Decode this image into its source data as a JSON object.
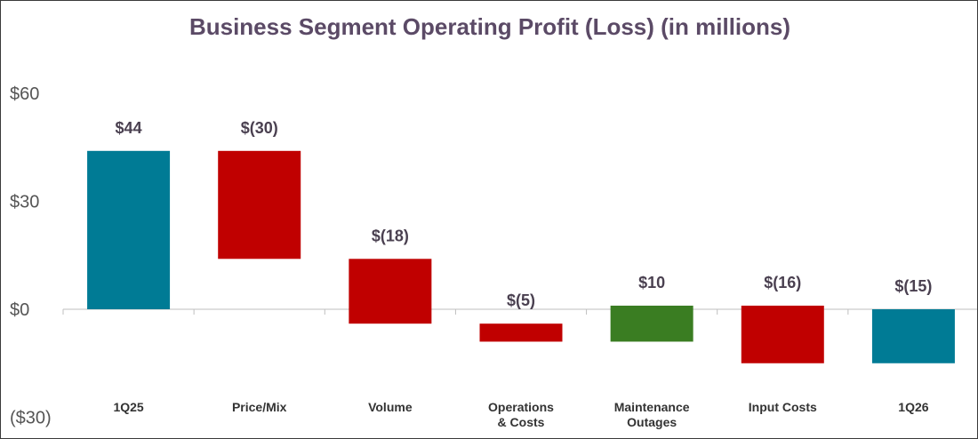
{
  "chart_data": {
    "type": "bar",
    "subtype": "waterfall",
    "title": "Business Segment Operating Profit (Loss) (in millions)",
    "xlabel": "",
    "ylabel": "",
    "ylim": [
      -30,
      60
    ],
    "yticks": [
      "$60",
      "$30",
      "$0",
      "($30)"
    ],
    "ytick_values": [
      60,
      30,
      0,
      -30
    ],
    "grid": false,
    "categories": [
      [
        "1Q25"
      ],
      [
        "Price/Mix"
      ],
      [
        "Volume"
      ],
      [
        "Operations",
        "& Costs"
      ],
      [
        "Maintenance",
        "Outages"
      ],
      [
        "Input Costs"
      ],
      [
        "1Q26"
      ]
    ],
    "category_names": [
      "1Q25",
      "Price/Mix",
      "Volume",
      "Operations & Costs",
      "Maintenance Outages",
      "Input Costs",
      "1Q26"
    ],
    "values": [
      44,
      -30,
      -18,
      -5,
      10,
      -16,
      -15
    ],
    "data_labels": [
      "$44",
      "$(30)",
      "$(18)",
      "$(5)",
      "$10",
      "$(16)",
      "$(15)"
    ],
    "bar_kind": [
      "total",
      "change",
      "change",
      "change",
      "change",
      "change",
      "total"
    ],
    "colors": {
      "total": "#007b95",
      "decrease": "#c00000",
      "increase": "#3a7d22",
      "axis": "#bfbfbf"
    }
  }
}
